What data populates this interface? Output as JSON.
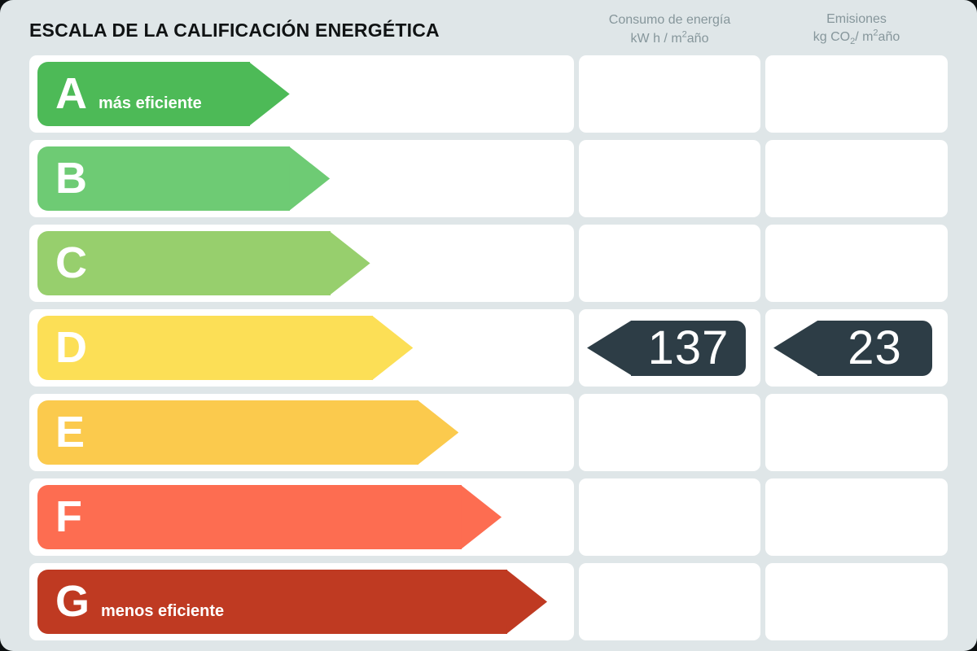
{
  "page": {
    "title": "ESCALA DE LA CALIFICACIÓN ENERGÉTICA"
  },
  "headers": {
    "consumo_line1": "Consumo de energía",
    "consumo_line2_pre": "kW h / m",
    "consumo_sup": "2",
    "consumo_line2_post": "año",
    "emisiones_line1": "Emisiones",
    "emisiones_line2_pre": "kg CO",
    "emisiones_sub": "2",
    "emisiones_line2_mid": "/ m",
    "emisiones_sup": "2",
    "emisiones_line2_post": "año"
  },
  "chart_data": {
    "type": "bar",
    "orientation": "horizontal",
    "title": "ESCALA DE LA CALIFICACIÓN ENERGÉTICA",
    "categories": [
      "A",
      "B",
      "C",
      "D",
      "E",
      "F",
      "G"
    ],
    "bar_lengths_pct": [
      47,
      54.5,
      62,
      70,
      78.5,
      86.5,
      95
    ],
    "colors": [
      "#4dba57",
      "#6ecb74",
      "#97cf6d",
      "#fcdf56",
      "#fbca4d",
      "#fd6d51",
      "#bf3a22"
    ],
    "annotations": {
      "A": "más eficiente",
      "G": "menos eficiente"
    },
    "current_rating": "D",
    "values": {
      "consumo_kwh_m2ano": "137",
      "emisiones_kgco2_m2ano": "23"
    },
    "value_arrow_color": "#2d3d46",
    "legend_position": "none",
    "grid": false
  }
}
